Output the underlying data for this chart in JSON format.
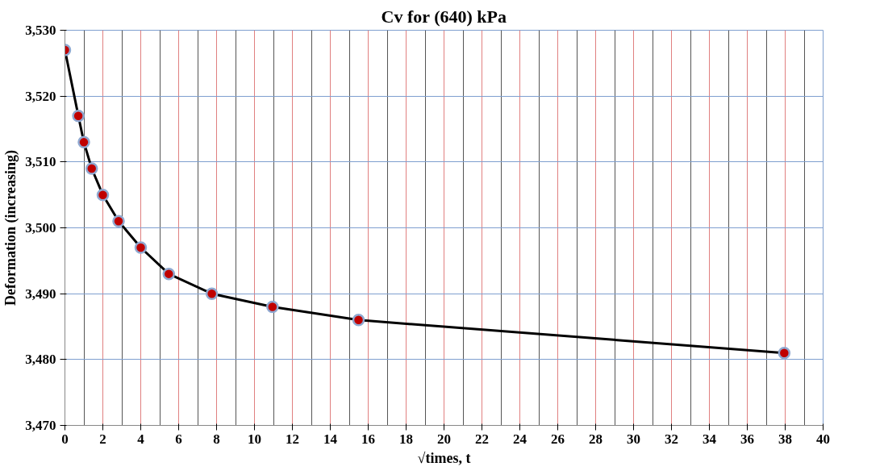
{
  "chart_data": {
    "type": "line",
    "title": "Cv for (640) kPa",
    "xlabel": "√times, t",
    "ylabel": "Deformation (increasing)",
    "x": [
      0,
      0.707,
      1,
      1.414,
      2,
      2.83,
      4,
      5.48,
      7.75,
      10.95,
      15.49,
      37.95
    ],
    "series": [
      {
        "color": "#000000",
        "values": [
          3527,
          3517,
          3513,
          3509,
          3505,
          3501,
          3497,
          3493,
          3490,
          3488,
          3486,
          3481
        ]
      }
    ],
    "xlim": [
      0,
      40
    ],
    "xticks": [
      0,
      2,
      4,
      6,
      8,
      10,
      12,
      14,
      16,
      18,
      20,
      22,
      24,
      26,
      28,
      30,
      32,
      34,
      36,
      38,
      40
    ],
    "ylim": [
      3470,
      3530
    ],
    "yticks": [
      {
        "value": 3470,
        "label": "3,470"
      },
      {
        "value": 3480,
        "label": "3,480"
      },
      {
        "value": 3490,
        "label": "3,490"
      },
      {
        "value": 3500,
        "label": "3,500"
      },
      {
        "value": 3510,
        "label": "3,510"
      },
      {
        "value": 3520,
        "label": "3,520"
      },
      {
        "value": 3530,
        "label": "3,530"
      }
    ],
    "grid": true,
    "marker": "circle",
    "line_style": "solid"
  }
}
